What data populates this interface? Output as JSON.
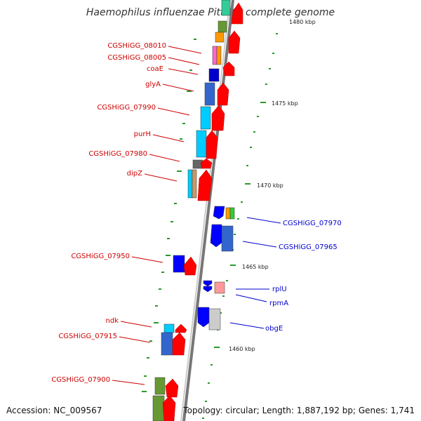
{
  "title": "Haemophilus influenzae PittGG, complete genome",
  "footer": {
    "accession": "Accession: NC_009567",
    "topology": "Topology: circular; Length: 1,887,192 bp; Genes: 1,741"
  },
  "colors": {
    "red_label": "#cc0000",
    "blue_label": "#0000cc",
    "tick": "#2a9a2a",
    "backbone": "#888888"
  },
  "kbp_labels": [
    "1480 kbp",
    "1475 kbp",
    "1470 kbp",
    "1465 kbp",
    "1460 kbp"
  ],
  "left_genes": [
    "CGSHiGG_08010",
    "CGSHiGG_08005",
    "coaE",
    "glyA",
    "CGSHiGG_07990",
    "purH",
    "CGSHiGG_07980",
    "dipZ",
    "CGSHiGG_07950",
    "ndk",
    "CGSHiGG_07915",
    "CGSHiGG_07900"
  ],
  "right_genes": [
    "CGSHiGG_07970",
    "CGSHiGG_07965",
    "rplU",
    "rpmA",
    "obgE"
  ]
}
